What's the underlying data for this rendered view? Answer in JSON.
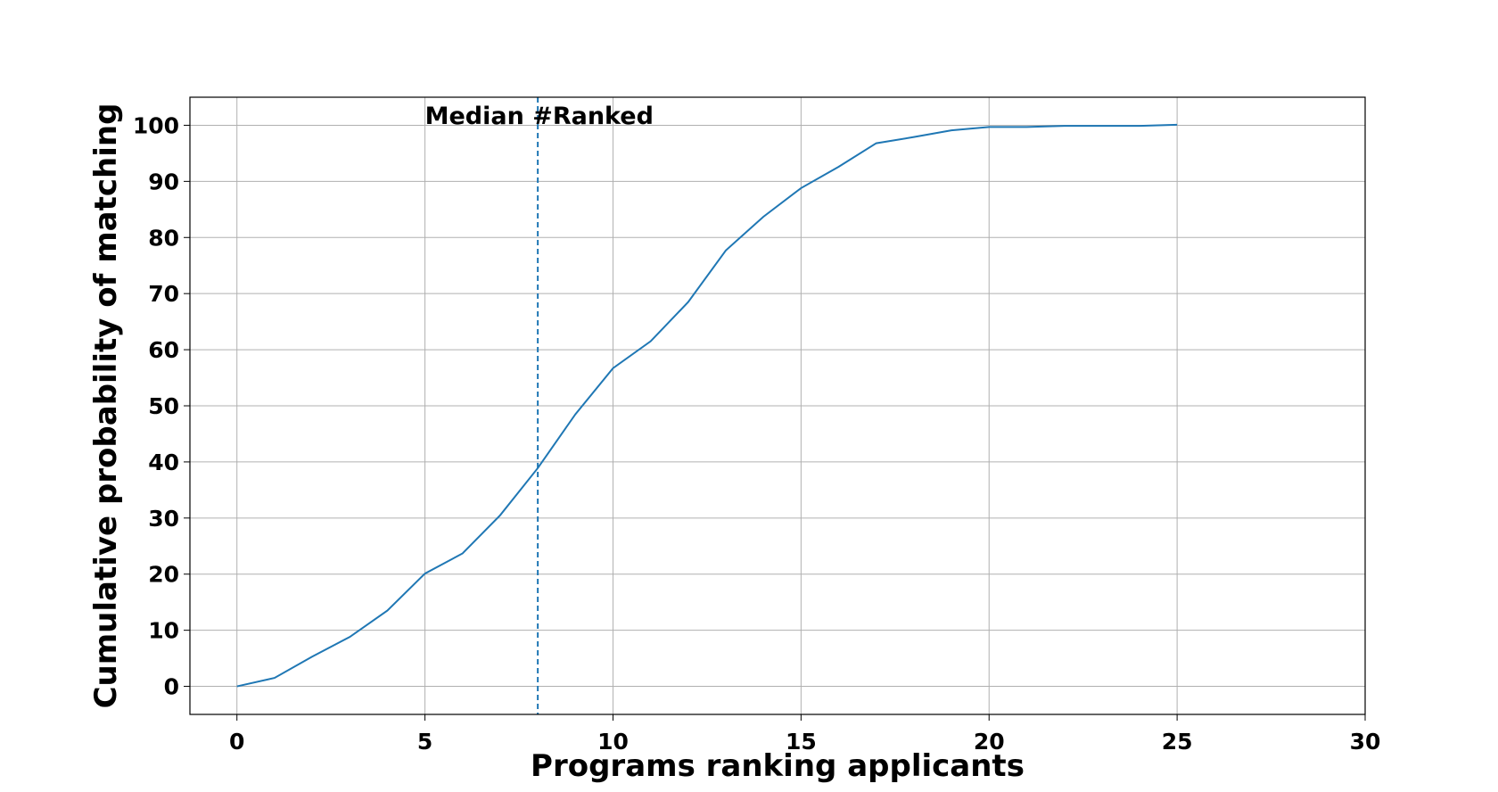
{
  "chart_data": {
    "type": "line",
    "xlabel": "Programs ranking applicants",
    "ylabel": "Cumulative probability of matching",
    "x": [
      0,
      1,
      2,
      3,
      4,
      5,
      6,
      7,
      8,
      9,
      10,
      11,
      12,
      13,
      14,
      15,
      16,
      17,
      18,
      19,
      20,
      21,
      22,
      23,
      24,
      25
    ],
    "series": [
      {
        "color": "#1f77b4",
        "values": [
          0,
          1.5,
          5.3,
          8.8,
          13.5,
          20.1,
          23.7,
          30.5,
          38.9,
          48.5,
          56.7,
          61.5,
          68.5,
          77.7,
          83.7,
          88.8,
          92.6,
          96.8,
          97.9,
          99.1,
          99.7,
          99.7,
          99.9,
          99.9,
          99.9,
          100.1
        ]
      }
    ],
    "median": {
      "x": 8,
      "label": "Median #Ranked",
      "color": "#1f77b4"
    },
    "xlim": [
      -1.25,
      30
    ],
    "ylim": [
      -5,
      105
    ],
    "xticks": [
      0,
      5,
      10,
      15,
      20,
      25,
      30
    ],
    "yticks": [
      0,
      10,
      20,
      30,
      40,
      50,
      60,
      70,
      80,
      90,
      100
    ],
    "grid": true
  }
}
